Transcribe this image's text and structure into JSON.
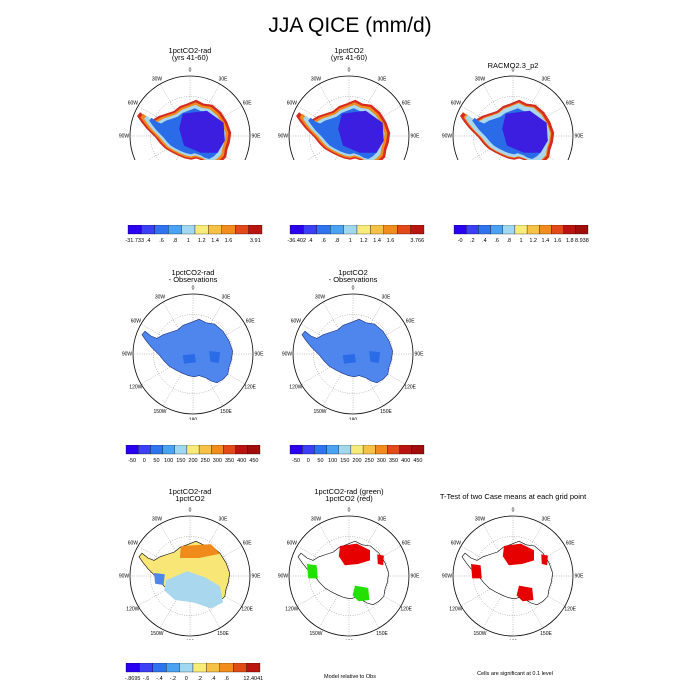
{
  "page_title": "JJA QICE (mm/d)",
  "colors": {
    "ocean": "#ffffff",
    "ice_low": "#3b1ee0",
    "ice_mid": "#2a6be8",
    "ice_blue": "#4f86ee",
    "ice_light": "#a9d8ee",
    "ice_yellow": "#f8e777",
    "edge_orange": "#ef8a1b",
    "edge_red": "#d62b20",
    "sig_red": "#e60000",
    "sig_green": "#22e000"
  },
  "palettes": {
    "p1": [
      "#2a00f0",
      "#3b3ff5",
      "#2f74ef",
      "#4aa3f2",
      "#9fd8ef",
      "#f7eb7a",
      "#f6c246",
      "#f28c1c",
      "#e4491a",
      "#b9140f"
    ],
    "p2": [
      "#2a00f0",
      "#3b3ff5",
      "#2f74ef",
      "#4aa3f2",
      "#9fd8ef",
      "#f7eb7a",
      "#f6c246",
      "#f28c1c",
      "#e4491a",
      "#b9140f"
    ],
    "p3": [
      "#2a00f0",
      "#3b3ff5",
      "#2f74ef",
      "#4aa3f2",
      "#9fd8ef",
      "#f7eb7a",
      "#f6c246",
      "#f28c1c",
      "#e4491a",
      "#b9140f",
      "#a00d0b"
    ],
    "diff": [
      "#2a00f0",
      "#3b3ff5",
      "#2f74ef",
      "#4aa3f2",
      "#9fd8ef",
      "#f7eb7a",
      "#f6c246",
      "#f28c1c",
      "#e4491a",
      "#b9140f",
      "#a00d0b"
    ],
    "dcase": [
      "#2a00f0",
      "#3b3ff5",
      "#2f74ef",
      "#4aa3f2",
      "#9fd8ef",
      "#f7eb7a",
      "#f6c246",
      "#f28c1c",
      "#e4491a",
      "#b9140f"
    ]
  },
  "lon_labels": [
    "0",
    "30E",
    "60E",
    "90E",
    "120E",
    "150E",
    "180",
    "150W",
    "120W",
    "90W",
    "60W",
    "30W"
  ],
  "chart_data": [
    {
      "id": "p1",
      "type": "heatmap",
      "title": "1pctCO2-rad",
      "subtitle": "(yrs 41-60)",
      "fill": "edge",
      "colorbar": {
        "labels": [
          "-31.733",
          ".4",
          ".6",
          ".8",
          "1",
          "1.2",
          "1.4",
          "1.6",
          "",
          "3.91"
        ]
      }
    },
    {
      "id": "p2",
      "type": "heatmap",
      "title": "1pctCO2",
      "subtitle": "(yrs 41-60)",
      "fill": "edge",
      "colorbar": {
        "labels": [
          "-36.402",
          ".4",
          ".6",
          ".8",
          "1",
          "1.2",
          "1.4",
          "1.6",
          "",
          "3.766"
        ]
      }
    },
    {
      "id": "p3",
      "type": "heatmap",
      "title": "RACMO2.3_p2",
      "subtitle": "",
      "fill": "edge_thin",
      "colorbar": {
        "labels": [
          "-0",
          ".2",
          ".4",
          ".6",
          ".8",
          "1",
          "1.2",
          "1.4",
          "1.6",
          "1.8",
          "8.938"
        ]
      }
    },
    {
      "id": "d1",
      "type": "heatmap",
      "title": "1pctCO2-rad",
      "subtitle": "- Observations",
      "fill": "diff",
      "colorbar": {
        "labels": [
          "-50",
          "0",
          "50",
          "100",
          "150",
          "200",
          "250",
          "300",
          "350",
          "400",
          "450"
        ]
      }
    },
    {
      "id": "d2",
      "type": "heatmap",
      "title": "1pctCO2",
      "subtitle": "- Observations",
      "fill": "diff",
      "colorbar": {
        "labels": [
          "-50",
          "0",
          "50",
          "100",
          "150",
          "200",
          "250",
          "300",
          "350",
          "400",
          "450"
        ]
      }
    },
    {
      "id": "c1",
      "type": "heatmap",
      "title": "1pctCO2-rad",
      "subtitle": "1pctCO2",
      "fill": "case",
      "colorbar": {
        "labels": [
          "-.8695",
          "-.6",
          "-.4",
          "-.2",
          "0",
          ".2",
          ".4",
          ".6",
          "",
          "12.4041"
        ]
      }
    },
    {
      "id": "c2",
      "type": "heatmap",
      "title": "1pctCO2-rad (green)",
      "subtitle": "1pctCO2 (red)",
      "fill": "sig2",
      "note": "Model relative to Obs"
    },
    {
      "id": "c3",
      "type": "heatmap",
      "title": "T-Test of two Case means at each grid point",
      "subtitle": "",
      "fill": "sig1",
      "note": "Cells are significant at 0.1 level"
    }
  ]
}
